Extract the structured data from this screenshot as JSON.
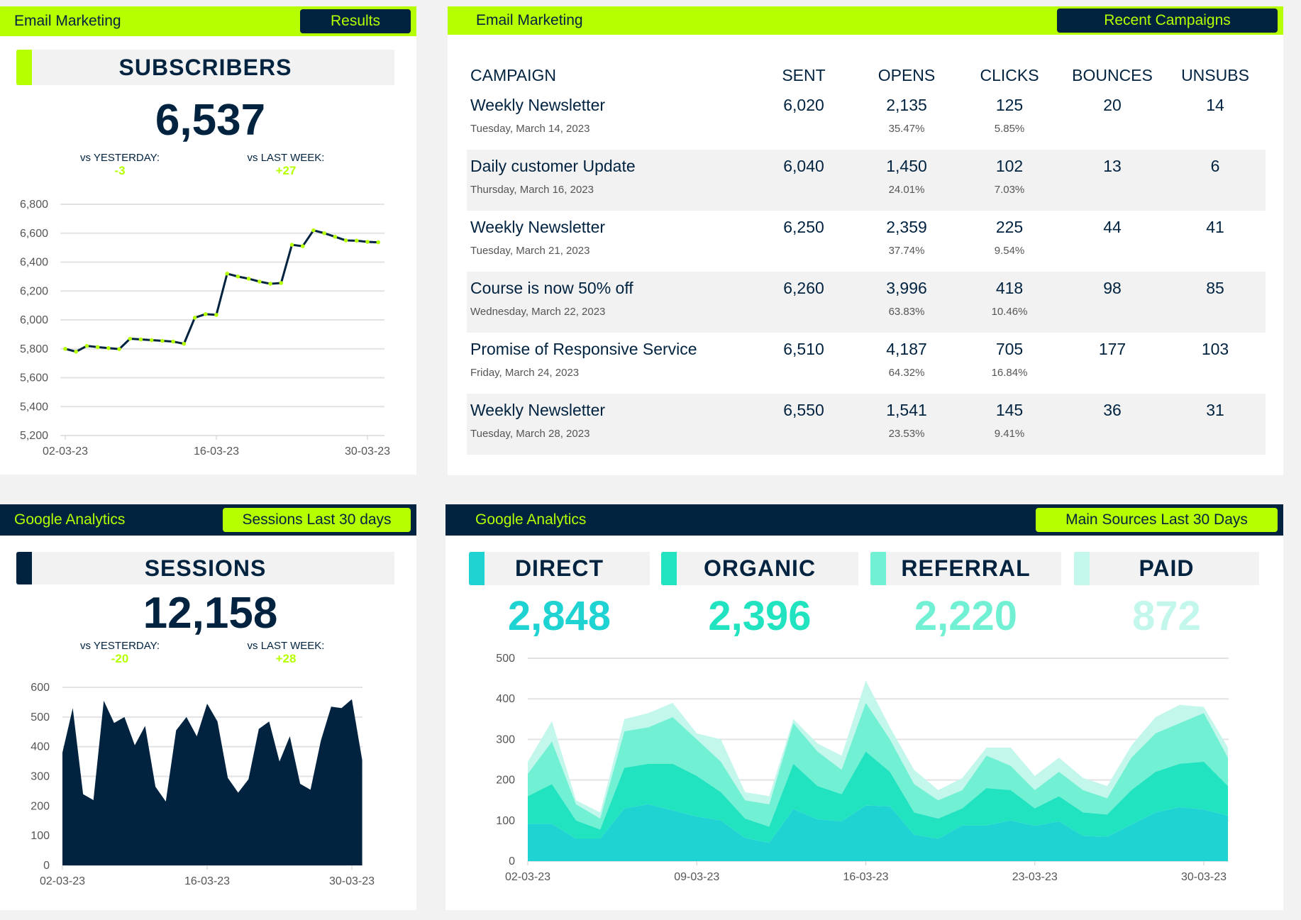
{
  "colors": {
    "navy": "#012340",
    "lime": "#b5ff00",
    "direct": "#1fd3d3",
    "organic": "#22e3c0",
    "referral": "#72f0d4",
    "paid": "#c3f7ec"
  },
  "subscribers_panel": {
    "title": "Email Marketing",
    "button": "Results",
    "kpi_label": "SUBSCRIBERS",
    "kpi_value": "6,537",
    "vs_yesterday_label": "vs YESTERDAY:",
    "vs_yesterday": "-3",
    "vs_last_week_label": "vs LAST WEEK:",
    "vs_last_week": "+27"
  },
  "campaigns_panel": {
    "title": "Email Marketing",
    "button": "Recent Campaigns",
    "columns": [
      "CAMPAIGN",
      "SENT",
      "OPENS",
      "CLICKS",
      "BOUNCES",
      "UNSUBS"
    ],
    "rows": [
      {
        "name": "Weekly Newsletter",
        "date": "Tuesday, March 14, 2023",
        "sent": "6,020",
        "opens": "2,135",
        "open_rate": "35.47%",
        "clicks": "125",
        "click_rate": "5.85%",
        "bounces": "20",
        "unsubs": "14"
      },
      {
        "name": "Daily customer Update",
        "date": "Thursday, March 16, 2023",
        "sent": "6,040",
        "opens": "1,450",
        "open_rate": "24.01%",
        "clicks": "102",
        "click_rate": "7.03%",
        "bounces": "13",
        "unsubs": "6"
      },
      {
        "name": "Weekly Newsletter",
        "date": "Tuesday, March 21, 2023",
        "sent": "6,250",
        "opens": "2,359",
        "open_rate": "37.74%",
        "clicks": "225",
        "click_rate": "9.54%",
        "bounces": "44",
        "unsubs": "41"
      },
      {
        "name": "Course is now 50% off",
        "date": "Wednesday, March 22, 2023",
        "sent": "6,260",
        "opens": "3,996",
        "open_rate": "63.83%",
        "clicks": "418",
        "click_rate": "10.46%",
        "bounces": "98",
        "unsubs": "85"
      },
      {
        "name": "Promise of Responsive Service",
        "date": "Friday, March 24, 2023",
        "sent": "6,510",
        "opens": "4,187",
        "open_rate": "64.32%",
        "clicks": "705",
        "click_rate": "16.84%",
        "bounces": "177",
        "unsubs": "103"
      },
      {
        "name": "Weekly Newsletter",
        "date": "Tuesday, March 28, 2023",
        "sent": "6,550",
        "opens": "1,541",
        "open_rate": "23.53%",
        "clicks": "145",
        "click_rate": "9.41%",
        "bounces": "36",
        "unsubs": "31"
      }
    ]
  },
  "sessions_panel": {
    "title": "Google Analytics",
    "button": "Sessions Last 30 days",
    "kpi_label": "SESSIONS",
    "kpi_value": "12,158",
    "vs_yesterday_label": "vs YESTERDAY:",
    "vs_yesterday": "-20",
    "vs_last_week_label": "vs LAST WEEK:",
    "vs_last_week": "+28"
  },
  "sources_panel": {
    "title": "Google Analytics",
    "button": "Main Sources Last 30 Days",
    "kpis": [
      {
        "label": "DIRECT",
        "value": "2,848"
      },
      {
        "label": "ORGANIC",
        "value": "2,396"
      },
      {
        "label": "REFERRAL",
        "value": "2,220"
      },
      {
        "label": "PAID",
        "value": "872"
      }
    ]
  },
  "chart_data": [
    {
      "type": "line",
      "title": "Subscribers",
      "xticks": [
        "02-03-23",
        "16-03-23",
        "30-03-23"
      ],
      "yticks": [
        "5,200",
        "5,400",
        "5,600",
        "5,800",
        "6,000",
        "6,200",
        "6,400",
        "6,600",
        "6,800"
      ],
      "ylim": [
        5200,
        6800
      ],
      "x_start": "02-03-23",
      "values": [
        5800,
        5780,
        5820,
        5812,
        5805,
        5798,
        5870,
        5865,
        5860,
        5855,
        5850,
        5835,
        6015,
        6040,
        6035,
        6320,
        6300,
        6285,
        6265,
        6250,
        6255,
        6520,
        6510,
        6620,
        6600,
        6575,
        6550,
        6548,
        6540,
        6537
      ]
    },
    {
      "type": "area",
      "title": "Sessions",
      "xticks": [
        "02-03-23",
        "16-03-23",
        "30-03-23"
      ],
      "yticks": [
        "0",
        "100",
        "200",
        "300",
        "400",
        "500",
        "600"
      ],
      "ylim": [
        0,
        600
      ],
      "x_start": "02-03-23",
      "values": [
        380,
        530,
        240,
        220,
        555,
        480,
        500,
        405,
        470,
        265,
        215,
        455,
        500,
        435,
        545,
        485,
        295,
        245,
        290,
        460,
        485,
        350,
        435,
        275,
        255,
        420,
        535,
        530,
        560,
        355
      ]
    },
    {
      "type": "area",
      "stacked": true,
      "title": "Main Sources",
      "xticks": [
        "02-03-23",
        "09-03-23",
        "16-03-23",
        "23-03-23",
        "30-03-23"
      ],
      "yticks": [
        "0",
        "100",
        "200",
        "300",
        "400",
        "500"
      ],
      "ylim": [
        0,
        500
      ],
      "x_start": "02-03-23",
      "series": [
        {
          "name": "Direct",
          "values": [
            92,
            92,
            55,
            55,
            130,
            140,
            125,
            110,
            100,
            57,
            45,
            128,
            103,
            98,
            137,
            135,
            65,
            55,
            88,
            88,
            100,
            87,
            98,
            62,
            60,
            90,
            120,
            133,
            127,
            112
          ]
        },
        {
          "name": "Organic",
          "values": [
            68,
            98,
            45,
            23,
            100,
            100,
            115,
            100,
            70,
            48,
            40,
            112,
            82,
            67,
            133,
            85,
            55,
            50,
            42,
            92,
            75,
            43,
            62,
            58,
            55,
            85,
            100,
            107,
            118,
            73
          ]
        },
        {
          "name": "Referral",
          "values": [
            55,
            105,
            40,
            27,
            90,
            90,
            115,
            90,
            75,
            45,
            55,
            100,
            85,
            60,
            120,
            80,
            70,
            45,
            45,
            80,
            60,
            45,
            60,
            55,
            40,
            80,
            95,
            100,
            120,
            70
          ]
        },
        {
          "name": "Paid",
          "values": [
            30,
            50,
            10,
            15,
            30,
            35,
            35,
            15,
            55,
            20,
            20,
            10,
            20,
            35,
            55,
            30,
            35,
            25,
            30,
            20,
            45,
            35,
            35,
            30,
            30,
            30,
            40,
            45,
            15,
            25
          ]
        }
      ]
    }
  ]
}
